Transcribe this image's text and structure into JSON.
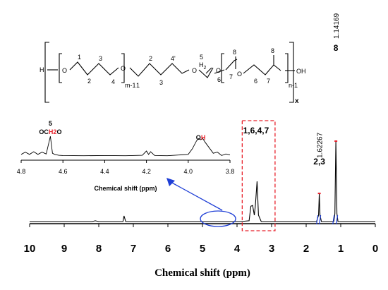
{
  "chart_data": [
    {
      "type": "line",
      "title": "",
      "xlabel": "Chemical shift (ppm)",
      "ylabel": "",
      "xlim": [
        10,
        0
      ],
      "x_ticks": [
        "10",
        "9",
        "8",
        "7",
        "6",
        "5",
        "4",
        "3",
        "2",
        "1",
        "0"
      ],
      "x_reversed": true,
      "grid": false,
      "series": [
        {
          "x": [
            10.0,
            8.2,
            8.1,
            8.0,
            7.3,
            7.27,
            7.22,
            3.9,
            3.65,
            3.6,
            3.55,
            3.5,
            3.47,
            3.42,
            3.38,
            3.3,
            2.8,
            1.7,
            1.64,
            1.62,
            1.6,
            1.56,
            1.2,
            1.17,
            1.14,
            1.11,
            1.08,
            0.0
          ],
          "y": [
            0.0,
            0.0,
            0.01,
            0.0,
            0.0,
            0.07,
            0.0,
            0.0,
            0.01,
            0.19,
            0.2,
            0.08,
            0.2,
            0.5,
            0.08,
            0.0,
            0.0,
            0.0,
            0.08,
            0.35,
            0.08,
            0.0,
            0.0,
            0.1,
            1.0,
            0.1,
            0.0,
            0.0
          ]
        }
      ],
      "peak_labels": [
        {
          "x": 3.45,
          "text": "1,6,4,7"
        },
        {
          "x": 1.62,
          "text": "2,3"
        },
        {
          "x": 1.14,
          "text": "8"
        }
      ],
      "peak_values": [
        {
          "x": 1.62,
          "text": "1.62267"
        },
        {
          "x": 1.14,
          "text": "1.14169"
        }
      ],
      "annotation_box": {
        "x_from": 3.85,
        "x_to": 2.9
      }
    },
    {
      "type": "line",
      "title": "",
      "xlabel": "Chemical shift (ppm)",
      "ylabel": "",
      "xlim": [
        4.8,
        3.8
      ],
      "x_ticks": [
        "4.8",
        "4.6",
        "4.4",
        "4.2",
        "4.0",
        "3.8"
      ],
      "x_reversed": true,
      "grid": false,
      "series": [
        {
          "x": [
            4.8,
            4.78,
            4.76,
            4.74,
            4.72,
            4.7,
            4.68,
            4.66,
            4.65,
            4.64,
            4.62,
            4.6,
            4.5,
            4.4,
            4.3,
            4.22,
            4.2,
            4.19,
            4.18,
            4.16,
            4.1,
            4.0,
            3.98,
            3.96,
            3.95,
            3.94,
            3.93,
            3.92,
            3.9,
            3.88,
            3.86,
            3.84,
            3.82,
            3.8
          ],
          "y": [
            0.1,
            0.2,
            0.1,
            0.22,
            0.1,
            0.2,
            0.12,
            0.9,
            0.15,
            0.1,
            0.06,
            0.05,
            0.04,
            0.05,
            0.04,
            0.06,
            0.25,
            0.1,
            0.22,
            0.05,
            0.04,
            0.1,
            0.35,
            0.7,
            0.8,
            0.75,
            0.8,
            0.65,
            0.4,
            0.15,
            0.2,
            0.05,
            0.12,
            0.08
          ]
        }
      ],
      "peak_labels": [
        {
          "x": 4.66,
          "text": "OCH2O",
          "number": "5"
        },
        {
          "x": 3.94,
          "text": "OH"
        }
      ]
    }
  ],
  "structure": {
    "left_cap": "H",
    "right_cap": "OH",
    "atom_O": "O",
    "atom_H2": "H",
    "h2_sub": "2",
    "repeat_m": "m-1",
    "repeat_n": "n-1",
    "repeat_x": "x",
    "labels": {
      "l1": "1",
      "l3": "3",
      "l2": "2",
      "l4": "4",
      "r2": "2",
      "r4p": "4'",
      "r1": "1",
      "r3": "3",
      "c5": "5",
      "c8a": "8",
      "c6p": "6'",
      "c7a": "7",
      "c8b": "8",
      "c6": "6",
      "c7b": "7"
    }
  },
  "colors": {
    "highlight_red": "#e8202a",
    "arrow_blue": "#1f3fd6",
    "ellipse_blue": "#1f3fd6"
  }
}
